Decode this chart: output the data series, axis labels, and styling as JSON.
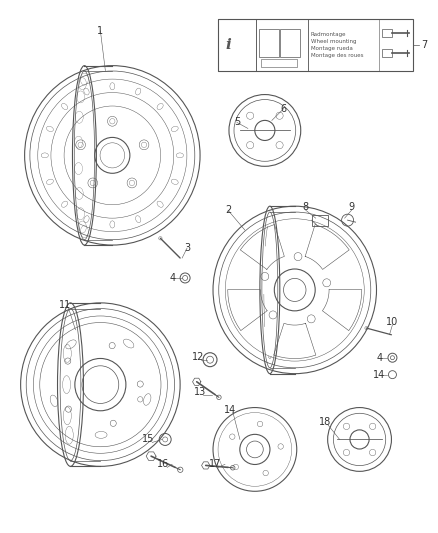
{
  "bg_color": "#ffffff",
  "line_color": "#555555",
  "label_color": "#333333",
  "font_size_labels": 7,
  "figsize": [
    4.38,
    5.33
  ],
  "dpi": 100,
  "info_box_text": "Radmontage\nWheel mounting\nMontage rueda\nMontage des roues"
}
